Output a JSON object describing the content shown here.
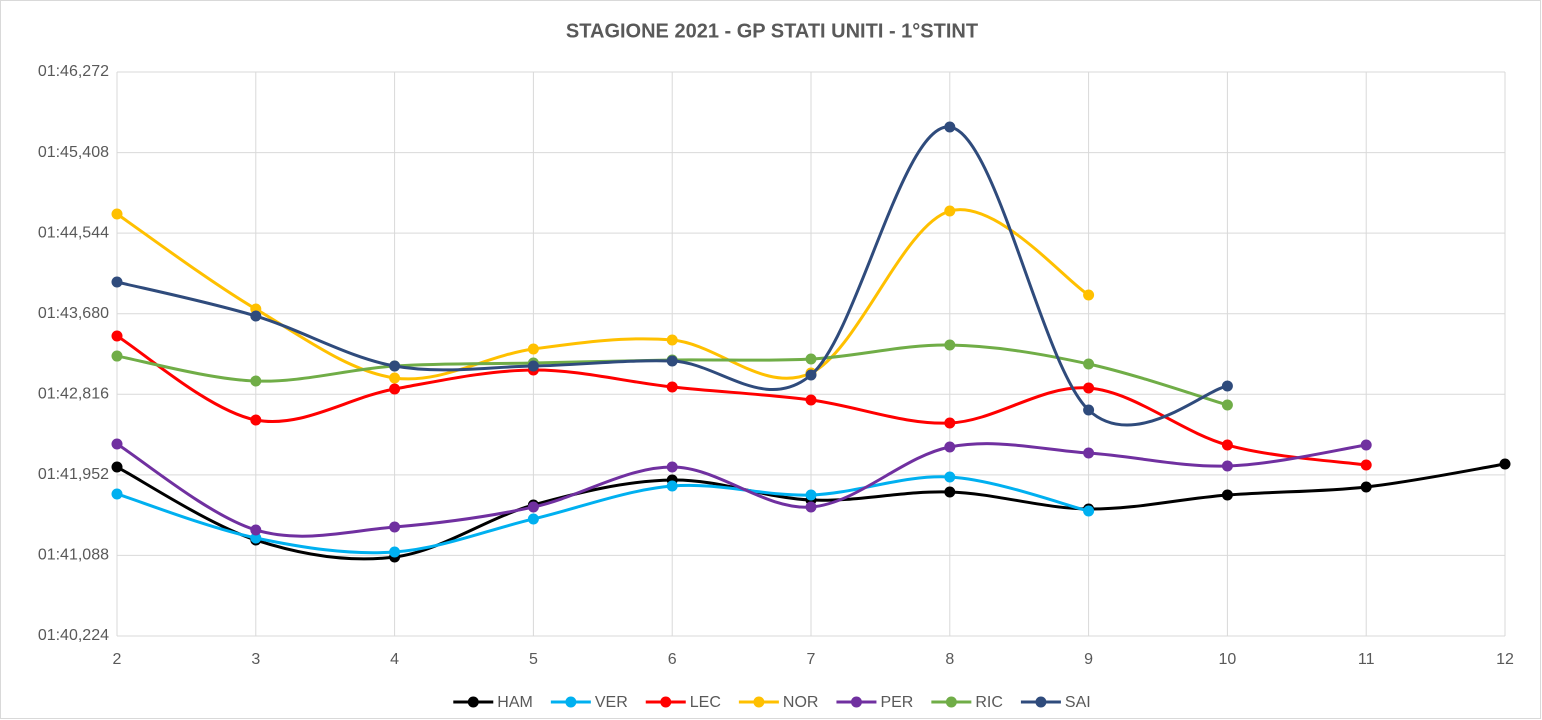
{
  "chart_data": {
    "type": "line",
    "title": "STAGIONE 2021 - GP STATI UNITI - 1°STINT",
    "x": [
      2,
      3,
      4,
      5,
      6,
      7,
      8,
      9,
      10,
      11,
      12
    ],
    "xlim": [
      2,
      12
    ],
    "xticks": [
      2,
      3,
      4,
      5,
      6,
      7,
      8,
      9,
      10,
      11,
      12
    ],
    "ylim": [
      100.224,
      106.272
    ],
    "yticks": [
      {
        "value": 100.224,
        "label": "01:40,224"
      },
      {
        "value": 101.088,
        "label": "01:41,088"
      },
      {
        "value": 101.952,
        "label": "01:41,952"
      },
      {
        "value": 102.816,
        "label": "01:42,816"
      },
      {
        "value": 103.68,
        "label": "01:43,680"
      },
      {
        "value": 104.544,
        "label": "01:44,544"
      },
      {
        "value": 105.408,
        "label": "01:45,408"
      },
      {
        "value": 106.272,
        "label": "01:46,272"
      }
    ],
    "grid": true,
    "smooth": true,
    "legend": "bottom",
    "series": [
      {
        "name": "HAM",
        "color": "#000000",
        "values": [
          102.036,
          101.253,
          101.071,
          101.629,
          101.897,
          101.682,
          101.768,
          101.586,
          101.736,
          101.822,
          102.068
        ]
      },
      {
        "name": "VER",
        "color": "#00b0f0",
        "values": [
          101.747,
          101.275,
          101.125,
          101.479,
          101.832,
          101.736,
          101.929,
          101.564,
          null,
          null,
          null
        ]
      },
      {
        "name": "LEC",
        "color": "#ff0000",
        "values": [
          103.441,
          102.54,
          102.873,
          103.076,
          102.894,
          102.755,
          102.508,
          102.883,
          102.272,
          102.058,
          null
        ]
      },
      {
        "name": "NOR",
        "color": "#ffc000",
        "values": [
          104.749,
          103.73,
          102.991,
          103.302,
          103.398,
          103.044,
          104.781,
          103.881,
          null,
          null,
          null
        ]
      },
      {
        "name": "PER",
        "color": "#7030a0",
        "values": [
          102.283,
          101.361,
          101.393,
          101.607,
          102.036,
          101.607,
          102.251,
          102.186,
          102.047,
          102.272,
          null
        ]
      },
      {
        "name": "RIC",
        "color": "#70ad47",
        "values": [
          103.226,
          102.958,
          103.119,
          103.151,
          103.184,
          103.194,
          103.344,
          103.141,
          102.701,
          null,
          null
        ]
      },
      {
        "name": "SAI",
        "color": "#2f4b7c",
        "values": [
          104.02,
          103.655,
          103.119,
          103.119,
          103.173,
          103.023,
          105.682,
          102.647,
          102.905,
          null,
          null
        ]
      }
    ]
  }
}
